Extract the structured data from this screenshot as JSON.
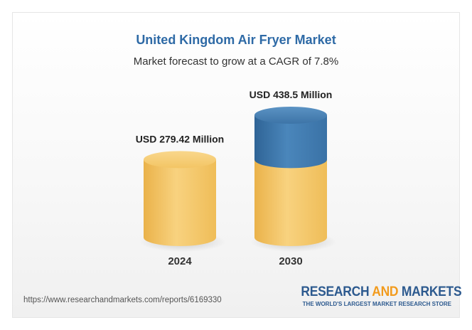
{
  "header": {
    "title": "United Kingdom Air Fryer Market",
    "subtitle": "Market forecast to grow at a CAGR of 7.8%"
  },
  "chart_data": {
    "type": "bar",
    "title": "United Kingdom Air Fryer Market",
    "subtitle": "Market forecast to grow at a CAGR of 7.8%",
    "categories": [
      "2024",
      "2030"
    ],
    "values": [
      279.42,
      438.5
    ],
    "value_labels": [
      "USD 279.42 Million",
      "USD 438.5 Million"
    ],
    "unit": "USD Million",
    "style": "3d-cylinder",
    "grid": false,
    "legend": "none",
    "colors": {
      "base": "#f5c765",
      "growth": "#3f78ab",
      "value_label": "#222222",
      "category_label": "#333333"
    }
  },
  "footer": {
    "source_url": "https://www.researchandmarkets.com/reports/6169330",
    "brand_part1": "RESEARCH ",
    "brand_part2": "AND",
    "brand_part3": " MARKETS",
    "brand_tagline": "THE WORLD'S LARGEST MARKET RESEARCH STORE"
  }
}
